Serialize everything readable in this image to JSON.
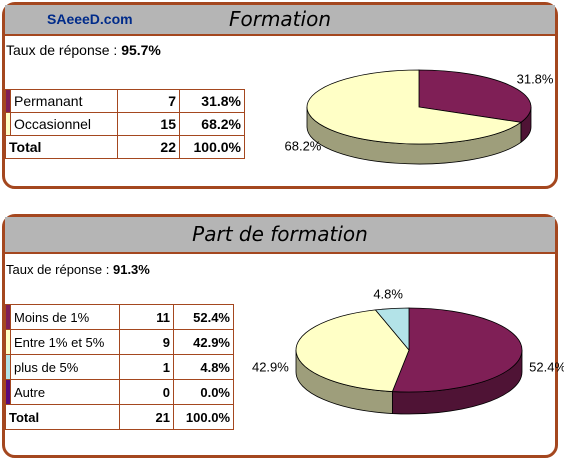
{
  "panels": [
    {
      "site": "SAeeeD.com",
      "title": "Formation",
      "rate_label": "Taux de réponse :",
      "rate_value": "95.7%",
      "total_label": "Total",
      "total_count": "22",
      "total_pct": "100.0%",
      "rows": [
        {
          "label": "Permanant",
          "count": "7",
          "pct": "31.8%",
          "color": "#7f1f56"
        },
        {
          "label": "Occasionnel",
          "count": "15",
          "pct": "68.2%",
          "color": "#ffffc6"
        }
      ]
    },
    {
      "title": "Part de formation",
      "rate_label": "Taux de réponse :",
      "rate_value": "91.3%",
      "total_label": "Total",
      "total_count": "21",
      "total_pct": "100.0%",
      "rows": [
        {
          "label": "Moins de 1%",
          "count": "11",
          "pct": "52.4%",
          "color": "#7f1f56"
        },
        {
          "label": "Entre 1% et 5%",
          "count": "9",
          "pct": "42.9%",
          "color": "#ffffc6"
        },
        {
          "label": "plus de 5%",
          "count": "1",
          "pct": "4.8%",
          "color": "#b3e3e8"
        },
        {
          "label": "Autre",
          "count": "0",
          "pct": "0.0%",
          "color": "#5a0a7a"
        }
      ]
    }
  ],
  "chart_data": [
    {
      "type": "pie",
      "title": "Formation",
      "categories": [
        "Permanant",
        "Occasionnel"
      ],
      "values": [
        31.8,
        68.2
      ],
      "labels": [
        "31.8%",
        "68.2%"
      ],
      "colors": [
        "#7f1f56",
        "#ffffc6"
      ]
    },
    {
      "type": "pie",
      "title": "Part de formation",
      "categories": [
        "Moins de 1%",
        "Entre 1% et 5%",
        "plus de 5%",
        "Autre"
      ],
      "values": [
        52.4,
        42.9,
        4.8,
        0.0
      ],
      "labels": [
        "52.4%",
        "42.9%",
        "4.8%",
        ""
      ],
      "colors": [
        "#7f1f56",
        "#ffffc6",
        "#b3e3e8",
        "#5a0a7a"
      ]
    }
  ]
}
